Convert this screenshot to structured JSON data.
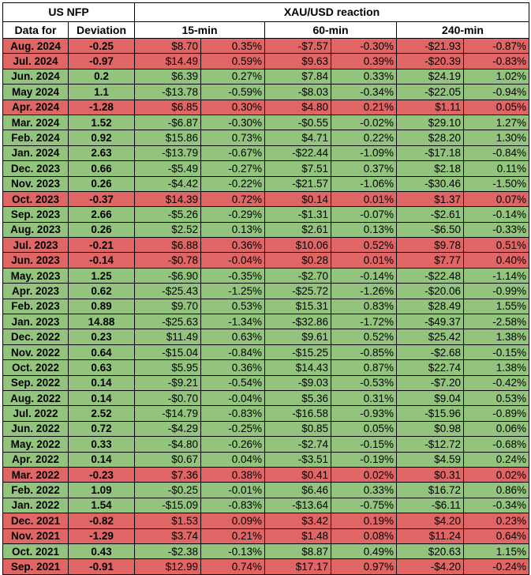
{
  "headers": {
    "us_nfp": "US NFP",
    "xau_reaction": "XAU/USD reaction",
    "data_for": "Data for",
    "deviation": "Deviation",
    "min15": "15-min",
    "min60": "60-min",
    "min240": "240-min"
  },
  "colors": {
    "negative_row": "#e06666",
    "positive_row": "#93c47d"
  },
  "rows": [
    {
      "date": "Aug. 2024",
      "dev": "-0.25",
      "m15": "$8.70",
      "p15": "0.35%",
      "m60": "-$7.57",
      "p60": "-0.30%",
      "m240": "-$21.93",
      "p240": "-0.87%",
      "tone": "neg"
    },
    {
      "date": "Jul. 2024",
      "dev": "-0.97",
      "m15": "$14.49",
      "p15": "0.59%",
      "m60": "$9.63",
      "p60": "0.39%",
      "m240": "-$20.39",
      "p240": "-0.83%",
      "tone": "neg"
    },
    {
      "date": "Jun. 2024",
      "dev": "0.2",
      "m15": "$6.39",
      "p15": "0.27%",
      "m60": "$7.84",
      "p60": "0.33%",
      "m240": "$24.19",
      "p240": "1.02%",
      "tone": "pos"
    },
    {
      "date": "May 2024",
      "dev": "1.1",
      "m15": "-$13.78",
      "p15": "-0.59%",
      "m60": "-$8.03",
      "p60": "-0.34%",
      "m240": "-$22.05",
      "p240": "-0.94%",
      "tone": "pos"
    },
    {
      "date": "Apr. 2024",
      "dev": "-1.28",
      "m15": "$6.85",
      "p15": "0.30%",
      "m60": "$4.80",
      "p60": "0.21%",
      "m240": "$1.11",
      "p240": "0.05%",
      "tone": "neg"
    },
    {
      "date": "Mar. 2024",
      "dev": "1.52",
      "m15": "-$6.87",
      "p15": "-0.30%",
      "m60": "-$0.55",
      "p60": "-0.02%",
      "m240": "$29.10",
      "p240": "1.27%",
      "tone": "pos"
    },
    {
      "date": "Feb. 2024",
      "dev": "0.92",
      "m15": "$15.86",
      "p15": "0.73%",
      "m60": "$4.71",
      "p60": "0.22%",
      "m240": "$28.20",
      "p240": "1.30%",
      "tone": "pos"
    },
    {
      "date": "Jan. 2024",
      "dev": "2.63",
      "m15": "-$13.79",
      "p15": "-0.67%",
      "m60": "-$22.44",
      "p60": "-1.09%",
      "m240": "-$17.18",
      "p240": "-0.84%",
      "tone": "pos"
    },
    {
      "date": "Dec. 2023",
      "dev": "0.66",
      "m15": "-$5.49",
      "p15": "-0.27%",
      "m60": "$7.51",
      "p60": "0.37%",
      "m240": "$2.18",
      "p240": "0.11%",
      "tone": "pos"
    },
    {
      "date": "Nov. 2023",
      "dev": "0.26",
      "m15": "-$4.42",
      "p15": "-0.22%",
      "m60": "-$21.57",
      "p60": "-1.06%",
      "m240": "-$30.46",
      "p240": "-1.50%",
      "tone": "pos"
    },
    {
      "date": "Oct. 2023",
      "dev": "-0.37",
      "m15": "$14.39",
      "p15": "0.72%",
      "m60": "$0.14",
      "p60": "0.01%",
      "m240": "$1.37",
      "p240": "0.07%",
      "tone": "neg"
    },
    {
      "date": "Sep. 2023",
      "dev": "2.66",
      "m15": "-$5.26",
      "p15": "-0.29%",
      "m60": "-$1.31",
      "p60": "-0.07%",
      "m240": "-$2.61",
      "p240": "-0.14%",
      "tone": "pos"
    },
    {
      "date": "Aug. 2023",
      "dev": "0.26",
      "m15": "$2.52",
      "p15": "0.13%",
      "m60": "$2.61",
      "p60": "0.13%",
      "m240": "-$6.50",
      "p240": "-0.33%",
      "tone": "pos"
    },
    {
      "date": "Jul. 2023",
      "dev": "-0.21",
      "m15": "$6.88",
      "p15": "0.36%",
      "m60": "$10.06",
      "p60": "0.52%",
      "m240": "$9.78",
      "p240": "0.51%",
      "tone": "neg"
    },
    {
      "date": "Jun. 2023",
      "dev": "-0.14",
      "m15": "-$0.78",
      "p15": "-0.04%",
      "m60": "$0.28",
      "p60": "0.01%",
      "m240": "$7.77",
      "p240": "0.40%",
      "tone": "neg"
    },
    {
      "date": "May. 2023",
      "dev": "1.25",
      "m15": "-$6.90",
      "p15": "-0.35%",
      "m60": "-$2.70",
      "p60": "-0.14%",
      "m240": "-$22.48",
      "p240": "-1.14%",
      "tone": "pos"
    },
    {
      "date": "Apr. 2023",
      "dev": "0.62",
      "m15": "-$25.43",
      "p15": "-1.25%",
      "m60": "-$25.72",
      "p60": "-1.26%",
      "m240": "-$20.06",
      "p240": "-0.99%",
      "tone": "pos"
    },
    {
      "date": "Feb. 2023",
      "dev": "0.89",
      "m15": "$9.70",
      "p15": "0.53%",
      "m60": "$15.31",
      "p60": "0.83%",
      "m240": "$28.49",
      "p240": "1.55%",
      "tone": "pos"
    },
    {
      "date": "Jan. 2023",
      "dev": "14.88",
      "m15": "-$25.63",
      "p15": "-1.34%",
      "m60": "-$32.86",
      "p60": "-1.72%",
      "m240": "-$49.37",
      "p240": "-2.58%",
      "tone": "pos"
    },
    {
      "date": "Dec. 2022",
      "dev": "0.23",
      "m15": "$11.49",
      "p15": "0.63%",
      "m60": "$9.61",
      "p60": "0.52%",
      "m240": "$25.42",
      "p240": "1.38%",
      "tone": "pos"
    },
    {
      "date": "Nov. 2022",
      "dev": "0.64",
      "m15": "-$15.04",
      "p15": "-0.84%",
      "m60": "-$15.25",
      "p60": "-0.85%",
      "m240": "-$2.68",
      "p240": "-0.15%",
      "tone": "pos"
    },
    {
      "date": "Oct. 2022",
      "dev": "0.63",
      "m15": "$5.95",
      "p15": "0.36%",
      "m60": "$14.43",
      "p60": "0.87%",
      "m240": "$22.74",
      "p240": "1.38%",
      "tone": "pos"
    },
    {
      "date": "Sep. 2022",
      "dev": "0.14",
      "m15": "-$9.21",
      "p15": "-0.54%",
      "m60": "-$9.03",
      "p60": "-0.53%",
      "m240": "-$7.20",
      "p240": "-0.42%",
      "tone": "pos"
    },
    {
      "date": "Aug. 2022",
      "dev": "0.14",
      "m15": "-$0.70",
      "p15": "-0.04%",
      "m60": "$5.36",
      "p60": "0.31%",
      "m240": "$9.04",
      "p240": "0.53%",
      "tone": "pos"
    },
    {
      "date": "Jul. 2022",
      "dev": "2.52",
      "m15": "-$14.79",
      "p15": "-0.83%",
      "m60": "-$16.58",
      "p60": "-0.93%",
      "m240": "-$15.96",
      "p240": "-0.89%",
      "tone": "pos"
    },
    {
      "date": "Jun. 2022",
      "dev": "0.72",
      "m15": "-$4.29",
      "p15": "-0.25%",
      "m60": "$0.85",
      "p60": "0.05%",
      "m240": "$0.98",
      "p240": "0.06%",
      "tone": "pos"
    },
    {
      "date": "May. 2022",
      "dev": "0.33",
      "m15": "-$4.80",
      "p15": "-0.26%",
      "m60": "-$2.74",
      "p60": "-0.15%",
      "m240": "-$12.72",
      "p240": "-0.68%",
      "tone": "pos"
    },
    {
      "date": "Apr. 2022",
      "dev": "0.14",
      "m15": "$0.67",
      "p15": "0.04%",
      "m60": "-$3.51",
      "p60": "-0.19%",
      "m240": "$4.59",
      "p240": "0.24%",
      "tone": "pos"
    },
    {
      "date": "Mar. 2022",
      "dev": "-0.23",
      "m15": "$7.36",
      "p15": "0.38%",
      "m60": "$0.41",
      "p60": "0.02%",
      "m240": "$0.31",
      "p240": "0.02%",
      "tone": "neg"
    },
    {
      "date": "Feb. 2022",
      "dev": "1.09",
      "m15": "-$0.25",
      "p15": "-0.01%",
      "m60": "$6.46",
      "p60": "0.33%",
      "m240": "$16.72",
      "p240": "0.86%",
      "tone": "pos"
    },
    {
      "date": "Jan. 2022",
      "dev": "1.54",
      "m15": "-$15.09",
      "p15": "-0.83%",
      "m60": "-$13.64",
      "p60": "-0.75%",
      "m240": "-$6.11",
      "p240": "-0.34%",
      "tone": "pos"
    },
    {
      "date": "Dec. 2021",
      "dev": "-0.82",
      "m15": "$1.53",
      "p15": "0.09%",
      "m60": "$3.42",
      "p60": "0.19%",
      "m240": "$4.20",
      "p240": "0.23%",
      "tone": "neg"
    },
    {
      "date": "Nov. 2021",
      "dev": "-1.29",
      "m15": "$3.74",
      "p15": "0.21%",
      "m60": "$1.48",
      "p60": "0.08%",
      "m240": "$11.24",
      "p240": "0.64%",
      "tone": "neg"
    },
    {
      "date": "Oct. 2021",
      "dev": "0.43",
      "m15": "-$2.38",
      "p15": "-0.13%",
      "m60": "$8.87",
      "p60": "0.49%",
      "m240": "$20.63",
      "p240": "1.15%",
      "tone": "pos"
    },
    {
      "date": "Sep. 2021",
      "dev": "-0.91",
      "m15": "$12.99",
      "p15": "0.74%",
      "m60": "$17.17",
      "p60": "0.97%",
      "m240": "-$4.20",
      "p240": "-0.24%",
      "tone": "neg"
    }
  ]
}
